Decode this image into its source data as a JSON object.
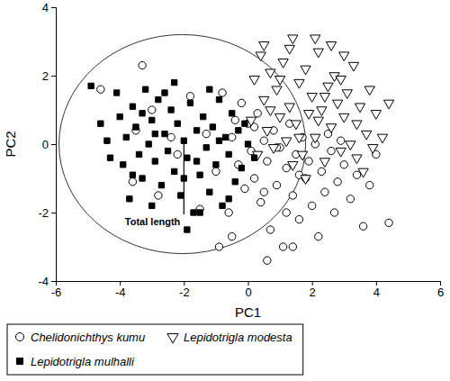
{
  "chart_data": {
    "type": "scatter",
    "x_label": "PC1",
    "y_label": "PC2",
    "xlim": [
      -6,
      6
    ],
    "ylim": [
      -4,
      4
    ],
    "xticks": [
      -6,
      -4,
      -2,
      0,
      2,
      4,
      6
    ],
    "yticks": [
      -4,
      -2,
      0,
      2,
      4
    ],
    "grid": false,
    "legend": "bottom",
    "correlation_circle": {
      "cx": -2.05,
      "cy": 0,
      "rx": 3.85,
      "ry": 3.2
    },
    "annotations": [
      {
        "text": "Total length",
        "x0": -2,
        "y0": 0,
        "x1": -2,
        "y1": -2.05
      }
    ],
    "series": [
      {
        "name": "Chelidonichthys kumu",
        "color": "#000000",
        "marker": "circle-open",
        "x": [
          -4.6,
          -3.3,
          -3.6,
          -3.5,
          -3.0,
          -2.8,
          -2.4,
          -2.2,
          -1.8,
          -1.5,
          -1.3,
          -1.0,
          -0.8,
          -0.6,
          -0.5,
          -0.3,
          -0.2,
          -0.1,
          0.0,
          0.1,
          0.2,
          0.3,
          0.4,
          0.5,
          0.6,
          0.7,
          0.8,
          0.9,
          1.0,
          1.1,
          1.2,
          1.3,
          1.4,
          1.5,
          1.6,
          1.7,
          1.8,
          1.9,
          2.0,
          2.1,
          2.2,
          2.3,
          2.4,
          2.5,
          2.6,
          2.7,
          2.8,
          3.0,
          3.2,
          3.4,
          3.6,
          3.8,
          4.0,
          4.4,
          0.6,
          -0.9,
          -0.5,
          1.4,
          0.2,
          0.9,
          1.6,
          2.9,
          -0.4,
          1.2,
          0.5
        ],
        "values": [
          1.6,
          2.3,
          -1.1,
          0.4,
          1.0,
          -1.5,
          0.2,
          -0.3,
          1.4,
          -1.9,
          0.3,
          -0.8,
          1.5,
          -2.0,
          0.2,
          -0.6,
          1.2,
          -1.3,
          0.6,
          -0.2,
          -1.0,
          0.9,
          -1.7,
          0.1,
          -0.5,
          -2.5,
          0.4,
          -1.2,
          -0.1,
          -3.0,
          -0.7,
          0.6,
          -1.5,
          -0.3,
          -2.2,
          0.2,
          -1.0,
          -0.5,
          -1.8,
          0.0,
          -2.7,
          -0.8,
          -1.4,
          0.3,
          -0.2,
          -2.0,
          -1.1,
          -0.6,
          -1.6,
          -0.9,
          -2.4,
          -1.2,
          -0.3,
          -2.3,
          -3.4,
          -3.0,
          -2.7,
          -3.0,
          0.5,
          -0.1,
          -0.9,
          0.1,
          0.7,
          -2.0,
          -1.4
        ]
      },
      {
        "name": "Lepidotrigla modesta",
        "color": "#000000",
        "marker": "triangle-down-open",
        "x": [
          0.2,
          0.4,
          0.5,
          0.6,
          0.7,
          0.8,
          0.9,
          1.0,
          1.1,
          1.2,
          1.3,
          1.4,
          1.5,
          1.6,
          1.7,
          1.8,
          1.9,
          2.0,
          2.1,
          2.2,
          2.3,
          2.4,
          2.5,
          2.6,
          2.7,
          2.8,
          2.9,
          3.0,
          3.1,
          3.2,
          3.3,
          3.4,
          3.5,
          3.6,
          3.7,
          3.8,
          4.0,
          4.2,
          4.4,
          2.1,
          1.3,
          0.1,
          0.3,
          1.8,
          2.6,
          1.0,
          2.2,
          3.0,
          0.7,
          1.6,
          2.9,
          3.9,
          1.4,
          2.4,
          0.5,
          3.4
        ],
        "values": [
          1.9,
          2.6,
          1.3,
          0.4,
          2.1,
          -0.1,
          1.6,
          0.8,
          2.4,
          0.1,
          1.1,
          3.1,
          0.6,
          1.8,
          -0.3,
          2.2,
          0.9,
          1.4,
          0.2,
          2.7,
          1.0,
          -0.5,
          1.7,
          0.5,
          2.0,
          1.2,
          -0.2,
          0.8,
          1.5,
          0.0,
          2.3,
          0.6,
          1.1,
          -0.8,
          0.3,
          1.6,
          0.9,
          0.2,
          1.2,
          3.1,
          2.8,
          0.7,
          -0.3,
          -1.0,
          2.9,
          1.9,
          0.7,
          2.6,
          1.0,
          0.2,
          1.9,
          -0.1,
          -0.6,
          1.4,
          2.9,
          -0.4
        ]
      },
      {
        "name": "Lepidotrigla mulhalli",
        "color": "#000000",
        "marker": "square",
        "x": [
          -4.9,
          -4.6,
          -4.3,
          -4.1,
          -4.0,
          -3.9,
          -3.8,
          -3.7,
          -3.6,
          -3.5,
          -3.4,
          -3.3,
          -3.2,
          -3.1,
          -3.0,
          -2.9,
          -2.8,
          -2.7,
          -2.6,
          -2.5,
          -2.4,
          -2.3,
          -2.2,
          -2.1,
          -2.0,
          -1.9,
          -1.8,
          -1.7,
          -1.6,
          -1.5,
          -1.4,
          -1.3,
          -1.2,
          -1.1,
          -1.0,
          -0.9,
          -0.8,
          -0.7,
          -0.6,
          -0.5,
          -0.4,
          -0.3,
          -0.2,
          0.0,
          0.2,
          -1.9,
          -3.6,
          -2.6,
          -1.2,
          -0.1,
          -4.4,
          -3.0,
          -2.3,
          -1.5,
          -0.6,
          -2.9,
          -1.6,
          -3.3,
          -0.9,
          -2.0
        ],
        "values": [
          1.7,
          0.6,
          -0.4,
          1.5,
          0.8,
          -0.6,
          0.2,
          -1.6,
          1.1,
          0.5,
          -0.3,
          -1.0,
          1.6,
          0.0,
          0.7,
          -0.5,
          1.3,
          -1.2,
          0.3,
          -0.2,
          1.0,
          -0.8,
          0.6,
          -1.5,
          0.1,
          -0.4,
          1.2,
          -2.0,
          0.4,
          -0.9,
          0.8,
          -0.1,
          -1.4,
          0.5,
          -0.6,
          1.3,
          -1.8,
          0.2,
          -0.3,
          0.9,
          -1.1,
          0.4,
          -0.7,
          0.0,
          -0.4,
          -2.5,
          -0.9,
          1.5,
          1.6,
          0.6,
          0.1,
          -1.8,
          1.8,
          -2.0,
          -1.6,
          0.3,
          -0.5,
          0.9,
          0.1,
          -1.0
        ]
      }
    ]
  }
}
